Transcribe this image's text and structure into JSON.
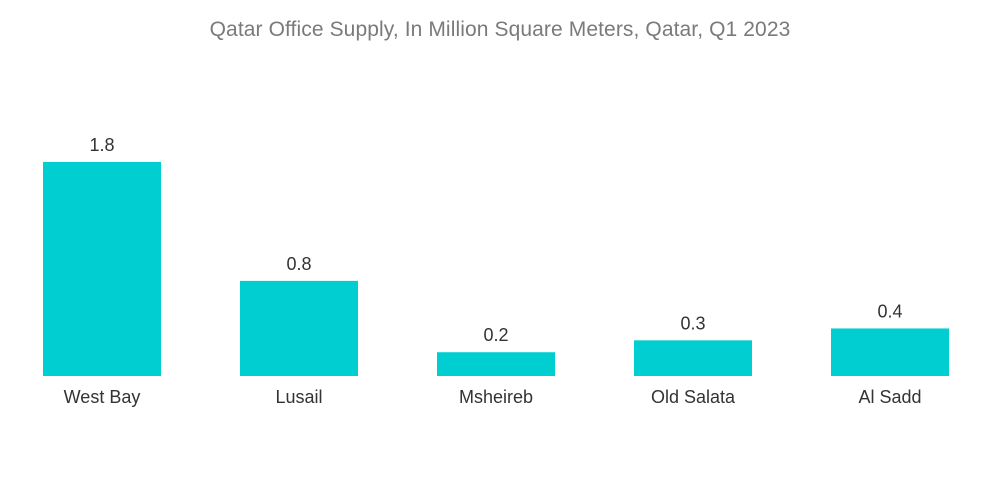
{
  "colors": {
    "bar": "#00CED1",
    "title": "#7a7a7a",
    "label": "#333333",
    "background": "#ffffff"
  },
  "chart_data": {
    "type": "bar",
    "title": "Qatar Office Supply, In Million Square Meters, Qatar, Q1 2023",
    "xlabel": "",
    "ylabel": "",
    "categories": [
      "West Bay",
      "Lusail",
      "Msheireb",
      "Old Salata",
      "Al Sadd"
    ],
    "values": [
      1.8,
      0.8,
      0.2,
      0.3,
      0.4
    ],
    "value_labels": [
      "1.8",
      "0.8",
      "0.2",
      "0.3",
      "0.4"
    ],
    "ylim": [
      0,
      1.8
    ],
    "grid": false,
    "legend": "none"
  }
}
